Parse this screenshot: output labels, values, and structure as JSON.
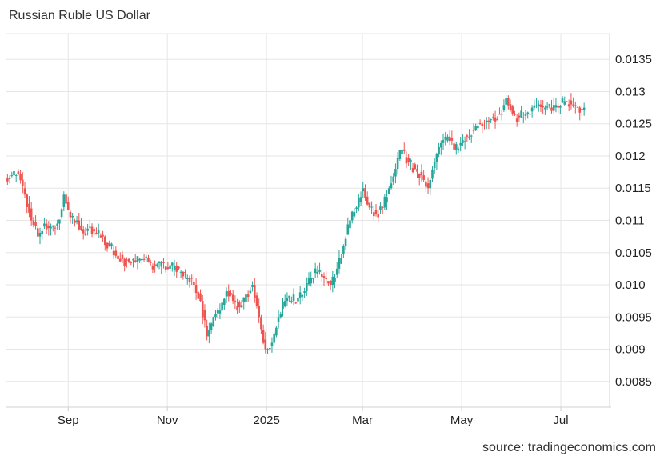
{
  "header": {
    "title": "Russian Ruble US Dollar"
  },
  "footer": {
    "source": "source: tradingeconomics.com"
  },
  "colors": {
    "up": "#26a69a",
    "down": "#ef5350",
    "grid": "#e6e6e6"
  },
  "chart_data": {
    "type": "candlestick",
    "title": "Russian Ruble US Dollar",
    "xlabel": "",
    "ylabel": "",
    "ylim": [
      0.0081,
      0.0139
    ],
    "y_ticks": [
      "0.0085",
      "0.009",
      "0.0095",
      "0.010",
      "0.0105",
      "0.011",
      "0.0115",
      "0.012",
      "0.0125",
      "0.013",
      "0.0135"
    ],
    "y_tick_values": [
      0.0085,
      0.009,
      0.0095,
      0.01,
      0.0105,
      0.011,
      0.0115,
      0.012,
      0.0125,
      0.013,
      0.0135
    ],
    "x_ticks": [
      "Sep",
      "Nov",
      "2025",
      "Mar",
      "May",
      "Jul"
    ],
    "x_tick_dates": [
      "2024-09-01",
      "2024-11-01",
      "2025-01-01",
      "2025-03-01",
      "2025-05-01",
      "2025-07-01"
    ],
    "x_range": [
      "2024-07-25",
      "2025-07-31"
    ],
    "grid": true,
    "close_series": [
      [
        "2024-07-25",
        0.01165
      ],
      [
        "2024-07-29",
        0.0117
      ],
      [
        "2024-08-02",
        0.01172
      ],
      [
        "2024-08-06",
        0.0114
      ],
      [
        "2024-08-10",
        0.011
      ],
      [
        "2024-08-14",
        0.01075
      ],
      [
        "2024-08-18",
        0.01095
      ],
      [
        "2024-08-22",
        0.0109
      ],
      [
        "2024-08-26",
        0.01095
      ],
      [
        "2024-08-30",
        0.0114
      ],
      [
        "2024-09-03",
        0.01105
      ],
      [
        "2024-09-07",
        0.011
      ],
      [
        "2024-09-11",
        0.0108
      ],
      [
        "2024-09-15",
        0.0109
      ],
      [
        "2024-09-19",
        0.0108
      ],
      [
        "2024-09-23",
        0.01075
      ],
      [
        "2024-09-27",
        0.0106
      ],
      [
        "2024-10-01",
        0.01045
      ],
      [
        "2024-10-05",
        0.0104
      ],
      [
        "2024-10-09",
        0.01035
      ],
      [
        "2024-10-13",
        0.01035
      ],
      [
        "2024-10-17",
        0.0104
      ],
      [
        "2024-10-21",
        0.01035
      ],
      [
        "2024-10-25",
        0.0103
      ],
      [
        "2024-10-29",
        0.01035
      ],
      [
        "2024-11-02",
        0.01025
      ],
      [
        "2024-11-06",
        0.0103
      ],
      [
        "2024-11-10",
        0.0102
      ],
      [
        "2024-11-14",
        0.0101
      ],
      [
        "2024-11-18",
        0.01
      ],
      [
        "2024-11-22",
        0.00975
      ],
      [
        "2024-11-26",
        0.0092
      ],
      [
        "2024-11-30",
        0.0095
      ],
      [
        "2024-12-04",
        0.0096
      ],
      [
        "2024-12-08",
        0.0099
      ],
      [
        "2024-12-12",
        0.00975
      ],
      [
        "2024-12-16",
        0.00965
      ],
      [
        "2024-12-20",
        0.00985
      ],
      [
        "2024-12-24",
        0.01
      ],
      [
        "2024-12-28",
        0.0095
      ],
      [
        "2025-01-01",
        0.009
      ],
      [
        "2025-01-05",
        0.0091
      ],
      [
        "2025-01-09",
        0.0095
      ],
      [
        "2025-01-13",
        0.00975
      ],
      [
        "2025-01-17",
        0.00975
      ],
      [
        "2025-01-21",
        0.0098
      ],
      [
        "2025-01-25",
        0.0099
      ],
      [
        "2025-01-29",
        0.0101
      ],
      [
        "2025-02-02",
        0.0102
      ],
      [
        "2025-02-06",
        0.0101
      ],
      [
        "2025-02-10",
        0.01
      ],
      [
        "2025-02-14",
        0.01025
      ],
      [
        "2025-02-18",
        0.0106
      ],
      [
        "2025-02-22",
        0.011
      ],
      [
        "2025-02-26",
        0.0112
      ],
      [
        "2025-03-02",
        0.0115
      ],
      [
        "2025-03-06",
        0.0112
      ],
      [
        "2025-03-10",
        0.0111
      ],
      [
        "2025-03-14",
        0.0112
      ],
      [
        "2025-03-18",
        0.0115
      ],
      [
        "2025-03-22",
        0.0118
      ],
      [
        "2025-03-26",
        0.0121
      ],
      [
        "2025-03-30",
        0.0119
      ],
      [
        "2025-04-03",
        0.0118
      ],
      [
        "2025-04-07",
        0.0117
      ],
      [
        "2025-04-11",
        0.0115
      ],
      [
        "2025-04-15",
        0.0119
      ],
      [
        "2025-04-19",
        0.0122
      ],
      [
        "2025-04-23",
        0.0123
      ],
      [
        "2025-04-27",
        0.0121
      ],
      [
        "2025-05-01",
        0.0122
      ],
      [
        "2025-05-05",
        0.0123
      ],
      [
        "2025-05-09",
        0.0124
      ],
      [
        "2025-05-13",
        0.0125
      ],
      [
        "2025-05-17",
        0.01255
      ],
      [
        "2025-05-21",
        0.0126
      ],
      [
        "2025-05-25",
        0.01265
      ],
      [
        "2025-05-29",
        0.0129
      ],
      [
        "2025-06-02",
        0.01265
      ],
      [
        "2025-06-06",
        0.0126
      ],
      [
        "2025-06-10",
        0.01265
      ],
      [
        "2025-06-14",
        0.01275
      ],
      [
        "2025-06-18",
        0.0128
      ],
      [
        "2025-06-22",
        0.01275
      ],
      [
        "2025-06-26",
        0.0127
      ],
      [
        "2025-06-30",
        0.01275
      ],
      [
        "2025-07-04",
        0.01285
      ],
      [
        "2025-07-08",
        0.0128
      ],
      [
        "2025-07-12",
        0.01275
      ],
      [
        "2025-07-16",
        0.01275
      ]
    ]
  }
}
